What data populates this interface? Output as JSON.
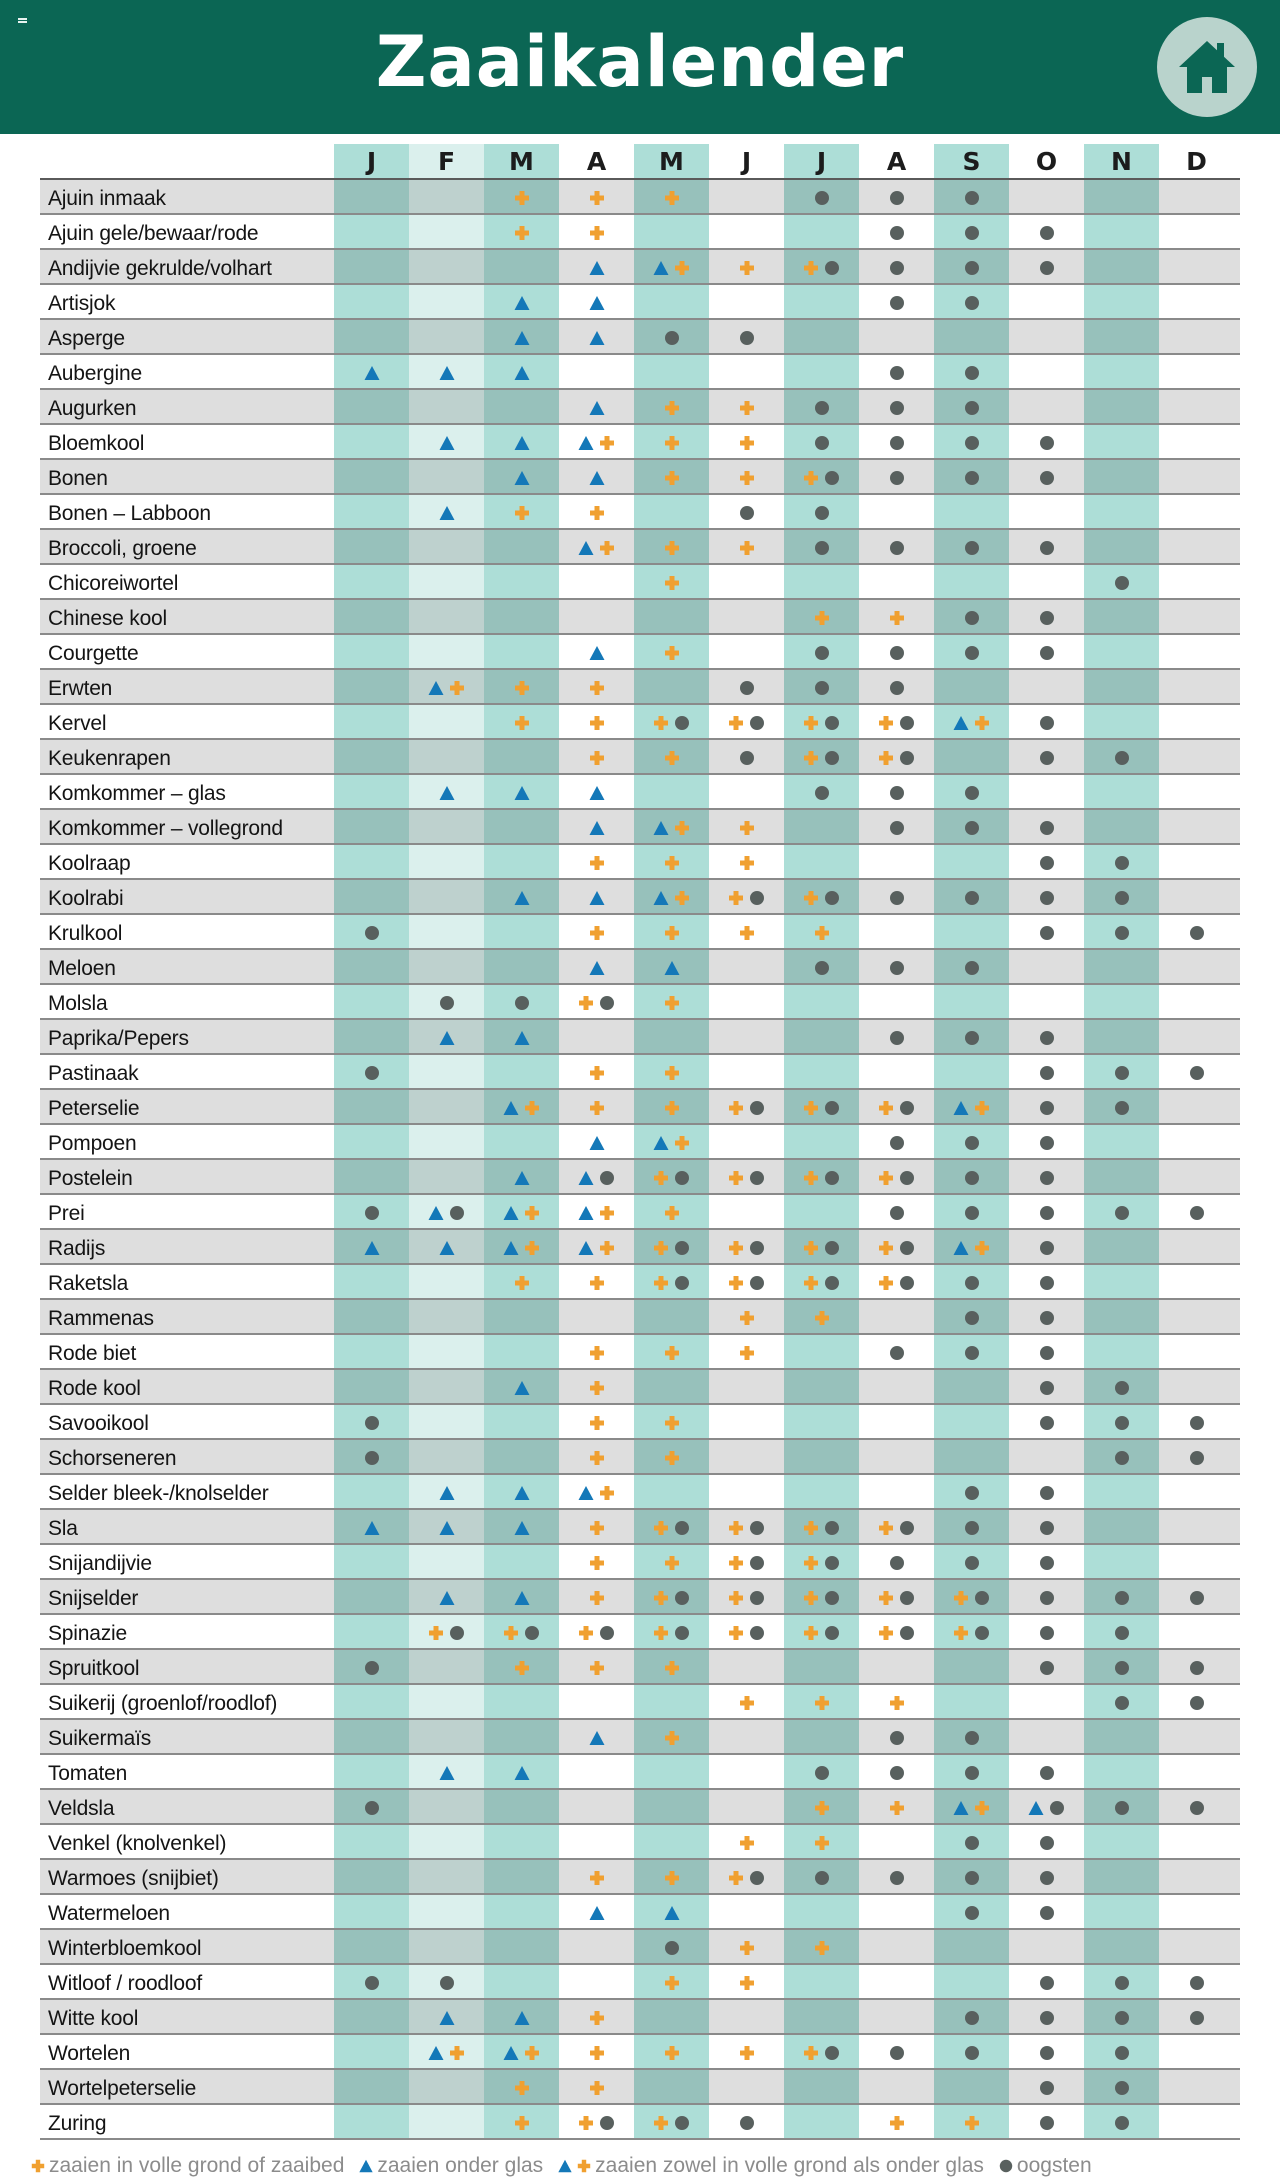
{
  "header": {
    "title": "Zaaikalender",
    "home_icon": "home-icon",
    "menu_icon": "menu-icon"
  },
  "colors": {
    "header_bg": "#0b6654",
    "teal_month": "#9fd8d0",
    "light_month": "#dbf0ed",
    "row_gray": "#dedede",
    "plus": "#f0a030",
    "triangle": "#1478b8",
    "dot": "#58605e"
  },
  "months": [
    "J",
    "F",
    "M",
    "A",
    "M",
    "J",
    "J",
    "A",
    "S",
    "O",
    "N",
    "D"
  ],
  "legend": {
    "plus": "zaaien in volle grond of zaaibed",
    "triangle": "zaaien onder glas",
    "both": "zaaien zowel in volle grond als onder glas",
    "dot": "oogsten"
  },
  "rows": [
    {
      "name": "Ajuin inmaak",
      "cells": [
        "",
        "",
        "P",
        "P",
        "P",
        "",
        "D",
        "D",
        "D",
        "",
        "",
        ""
      ]
    },
    {
      "name": "Ajuin gele/bewaar/rode",
      "cells": [
        "",
        "",
        "P",
        "P",
        "",
        "",
        "",
        "D",
        "D",
        "D",
        "",
        ""
      ]
    },
    {
      "name": "Andijvie gekrulde/volhart",
      "cells": [
        "",
        "",
        "",
        "T",
        "TP",
        "P",
        "PD",
        "D",
        "D",
        "D",
        "",
        ""
      ]
    },
    {
      "name": "Artisjok",
      "cells": [
        "",
        "",
        "T",
        "T",
        "",
        "",
        "",
        "D",
        "D",
        "",
        "",
        ""
      ]
    },
    {
      "name": "Asperge",
      "cells": [
        "",
        "",
        "T",
        "T",
        "D",
        "D",
        "",
        "",
        "",
        "",
        "",
        ""
      ]
    },
    {
      "name": "Aubergine",
      "cells": [
        "T",
        "T",
        "T",
        "",
        "",
        "",
        "",
        "D",
        "D",
        "",
        "",
        ""
      ]
    },
    {
      "name": "Augurken",
      "cells": [
        "",
        "",
        "",
        "T",
        "P",
        "P",
        "D",
        "D",
        "D",
        "",
        "",
        ""
      ]
    },
    {
      "name": "Bloemkool",
      "cells": [
        "",
        "T",
        "T",
        "TP",
        "P",
        "P",
        "D",
        "D",
        "D",
        "D",
        "",
        ""
      ]
    },
    {
      "name": "Bonen",
      "cells": [
        "",
        "",
        "T",
        "T",
        "P",
        "P",
        "PD",
        "D",
        "D",
        "D",
        "",
        ""
      ]
    },
    {
      "name": "Bonen – Labboon",
      "cells": [
        "",
        "T",
        "P",
        "P",
        "",
        "D",
        "D",
        "",
        "",
        "",
        "",
        ""
      ]
    },
    {
      "name": "Broccoli, groene",
      "cells": [
        "",
        "",
        "",
        "TP",
        "P",
        "P",
        "D",
        "D",
        "D",
        "D",
        "",
        ""
      ]
    },
    {
      "name": "Chicoreiwortel",
      "cells": [
        "",
        "",
        "",
        "",
        "P",
        "",
        "",
        "",
        "",
        "",
        "D",
        ""
      ]
    },
    {
      "name": "Chinese kool",
      "cells": [
        "",
        "",
        "",
        "",
        "",
        "",
        "P",
        "P",
        "D",
        "D",
        "",
        ""
      ]
    },
    {
      "name": "Courgette",
      "cells": [
        "",
        "",
        "",
        "T",
        "P",
        "",
        "D",
        "D",
        "D",
        "D",
        "",
        ""
      ]
    },
    {
      "name": "Erwten",
      "cells": [
        "",
        "TP",
        "P",
        "P",
        "",
        "D",
        "D",
        "D",
        "",
        "",
        "",
        ""
      ]
    },
    {
      "name": "Kervel",
      "cells": [
        "",
        "",
        "P",
        "P",
        "PD",
        "PD",
        "PD",
        "PD",
        "TP",
        "D",
        "",
        ""
      ]
    },
    {
      "name": "Keukenrapen",
      "cells": [
        "",
        "",
        "",
        "P",
        "P",
        "D",
        "PD",
        "PD",
        "",
        "D",
        "D",
        ""
      ]
    },
    {
      "name": "Komkommer – glas",
      "cells": [
        "",
        "T",
        "T",
        "T",
        "",
        "",
        "D",
        "D",
        "D",
        "",
        "",
        ""
      ]
    },
    {
      "name": "Komkommer – vollegrond",
      "cells": [
        "",
        "",
        "",
        "T",
        "TP",
        "P",
        "",
        "D",
        "D",
        "D",
        "",
        ""
      ]
    },
    {
      "name": "Koolraap",
      "cells": [
        "",
        "",
        "",
        "P",
        "P",
        "P",
        "",
        "",
        "",
        "D",
        "D",
        ""
      ]
    },
    {
      "name": "Koolrabi",
      "cells": [
        "",
        "",
        "T",
        "T",
        "TP",
        "PD",
        "PD",
        "D",
        "D",
        "D",
        "D",
        ""
      ]
    },
    {
      "name": "Krulkool",
      "cells": [
        "D",
        "",
        "",
        "P",
        "P",
        "P",
        "P",
        "",
        "",
        "D",
        "D",
        "D"
      ]
    },
    {
      "name": "Meloen",
      "cells": [
        "",
        "",
        "",
        "T",
        "T",
        "",
        "D",
        "D",
        "D",
        "",
        "",
        ""
      ]
    },
    {
      "name": "Molsla",
      "cells": [
        "",
        "D",
        "D",
        "PD",
        "P",
        "",
        "",
        "",
        "",
        "",
        "",
        ""
      ]
    },
    {
      "name": "Paprika/Pepers",
      "cells": [
        "",
        "T",
        "T",
        "",
        "",
        "",
        "",
        "D",
        "D",
        "D",
        "",
        ""
      ]
    },
    {
      "name": "Pastinaak",
      "cells": [
        "D",
        "",
        "",
        "P",
        "P",
        "",
        "",
        "",
        "",
        "D",
        "D",
        "D"
      ]
    },
    {
      "name": "Peterselie",
      "cells": [
        "",
        "",
        "TP",
        "P",
        "P",
        "PD",
        "PD",
        "PD",
        "TP",
        "D",
        "D",
        ""
      ]
    },
    {
      "name": "Pompoen",
      "cells": [
        "",
        "",
        "",
        "T",
        "TP",
        "",
        "",
        "D",
        "D",
        "D",
        "",
        ""
      ]
    },
    {
      "name": "Postelein",
      "cells": [
        "",
        "",
        "T",
        "TD",
        "PD",
        "PD",
        "PD",
        "PD",
        "D",
        "D",
        "",
        ""
      ]
    },
    {
      "name": "Prei",
      "cells": [
        "D",
        "TD",
        "TP",
        "TP",
        "P",
        "",
        "",
        "D",
        "D",
        "D",
        "D",
        "D"
      ]
    },
    {
      "name": "Radijs",
      "cells": [
        "T",
        "T",
        "TP",
        "TP",
        "PD",
        "PD",
        "PD",
        "PD",
        "TP",
        "D",
        "",
        ""
      ]
    },
    {
      "name": "Raketsla",
      "cells": [
        "",
        "",
        "P",
        "P",
        "PD",
        "PD",
        "PD",
        "PD",
        "D",
        "D",
        "",
        ""
      ]
    },
    {
      "name": "Rammenas",
      "cells": [
        "",
        "",
        "",
        "",
        "",
        "P",
        "P",
        "",
        "D",
        "D",
        "",
        ""
      ]
    },
    {
      "name": "Rode biet",
      "cells": [
        "",
        "",
        "",
        "P",
        "P",
        "P",
        "",
        "D",
        "D",
        "D",
        "",
        ""
      ]
    },
    {
      "name": "Rode kool",
      "cells": [
        "",
        "",
        "T",
        "P",
        "",
        "",
        "",
        "",
        "",
        "D",
        "D",
        ""
      ]
    },
    {
      "name": "Savooikool",
      "cells": [
        "D",
        "",
        "",
        "P",
        "P",
        "",
        "",
        "",
        "",
        "D",
        "D",
        "D"
      ]
    },
    {
      "name": "Schorseneren",
      "cells": [
        "D",
        "",
        "",
        "P",
        "P",
        "",
        "",
        "",
        "",
        "",
        "D",
        "D"
      ]
    },
    {
      "name": "Selder bleek-/knolselder",
      "cells": [
        "",
        "T",
        "T",
        "TP",
        "",
        "",
        "",
        "",
        "D",
        "D",
        "",
        ""
      ]
    },
    {
      "name": "Sla",
      "cells": [
        "T",
        "T",
        "T",
        "P",
        "PD",
        "PD",
        "PD",
        "PD",
        "D",
        "D",
        "",
        ""
      ]
    },
    {
      "name": "Snijandijvie",
      "cells": [
        "",
        "",
        "",
        "P",
        "P",
        "PD",
        "PD",
        "D",
        "D",
        "D",
        "",
        ""
      ]
    },
    {
      "name": "Snijselder",
      "cells": [
        "",
        "T",
        "T",
        "P",
        "PD",
        "PD",
        "PD",
        "PD",
        "PD",
        "D",
        "D",
        "D"
      ]
    },
    {
      "name": "Spinazie",
      "cells": [
        "",
        "PD",
        "PD",
        "PD",
        "PD",
        "PD",
        "PD",
        "PD",
        "PD",
        "D",
        "D",
        ""
      ]
    },
    {
      "name": "Spruitkool",
      "cells": [
        "D",
        "",
        "P",
        "P",
        "P",
        "",
        "",
        "",
        "",
        "D",
        "D",
        "D"
      ]
    },
    {
      "name": "Suikerij (groenlof/roodlof)",
      "cells": [
        "",
        "",
        "",
        "",
        "",
        "P",
        "P",
        "P",
        "",
        "",
        "D",
        "D"
      ]
    },
    {
      "name": "Suikermaïs",
      "cells": [
        "",
        "",
        "",
        "T",
        "P",
        "",
        "",
        "D",
        "D",
        "",
        "",
        ""
      ]
    },
    {
      "name": "Tomaten",
      "cells": [
        "",
        "T",
        "T",
        "",
        "",
        "",
        "D",
        "D",
        "D",
        "D",
        "",
        ""
      ]
    },
    {
      "name": "Veldsla",
      "cells": [
        "D",
        "",
        "",
        "",
        "",
        "",
        "P",
        "P",
        "TP",
        "TD",
        "D",
        "D"
      ]
    },
    {
      "name": "Venkel (knolvenkel)",
      "cells": [
        "",
        "",
        "",
        "",
        "",
        "P",
        "P",
        "",
        "D",
        "D",
        "",
        ""
      ]
    },
    {
      "name": "Warmoes (snijbiet)",
      "cells": [
        "",
        "",
        "",
        "P",
        "P",
        "PD",
        "D",
        "D",
        "D",
        "D",
        "",
        ""
      ]
    },
    {
      "name": "Watermeloen",
      "cells": [
        "",
        "",
        "",
        "T",
        "T",
        "",
        "",
        "",
        "D",
        "D",
        "",
        ""
      ]
    },
    {
      "name": "Winterbloemkool",
      "cells": [
        "",
        "",
        "",
        "",
        "D",
        "P",
        "P",
        "",
        "",
        "",
        "",
        ""
      ]
    },
    {
      "name": "Witloof / roodloof",
      "cells": [
        "D",
        "D",
        "",
        "",
        "P",
        "P",
        "",
        "",
        "",
        "D",
        "D",
        "D"
      ]
    },
    {
      "name": "Witte kool",
      "cells": [
        "",
        "T",
        "T",
        "P",
        "",
        "",
        "",
        "",
        "D",
        "D",
        "D",
        "D"
      ]
    },
    {
      "name": "Wortelen",
      "cells": [
        "",
        "TP",
        "TP",
        "P",
        "P",
        "P",
        "PD",
        "D",
        "D",
        "D",
        "D",
        ""
      ]
    },
    {
      "name": "Wortelpeterselie",
      "cells": [
        "",
        "",
        "P",
        "P",
        "",
        "",
        "",
        "",
        "",
        "D",
        "D",
        ""
      ]
    },
    {
      "name": "Zuring",
      "cells": [
        "",
        "",
        "P",
        "PD",
        "PD",
        "D",
        "",
        "P",
        "P",
        "D",
        "D",
        ""
      ]
    }
  ]
}
